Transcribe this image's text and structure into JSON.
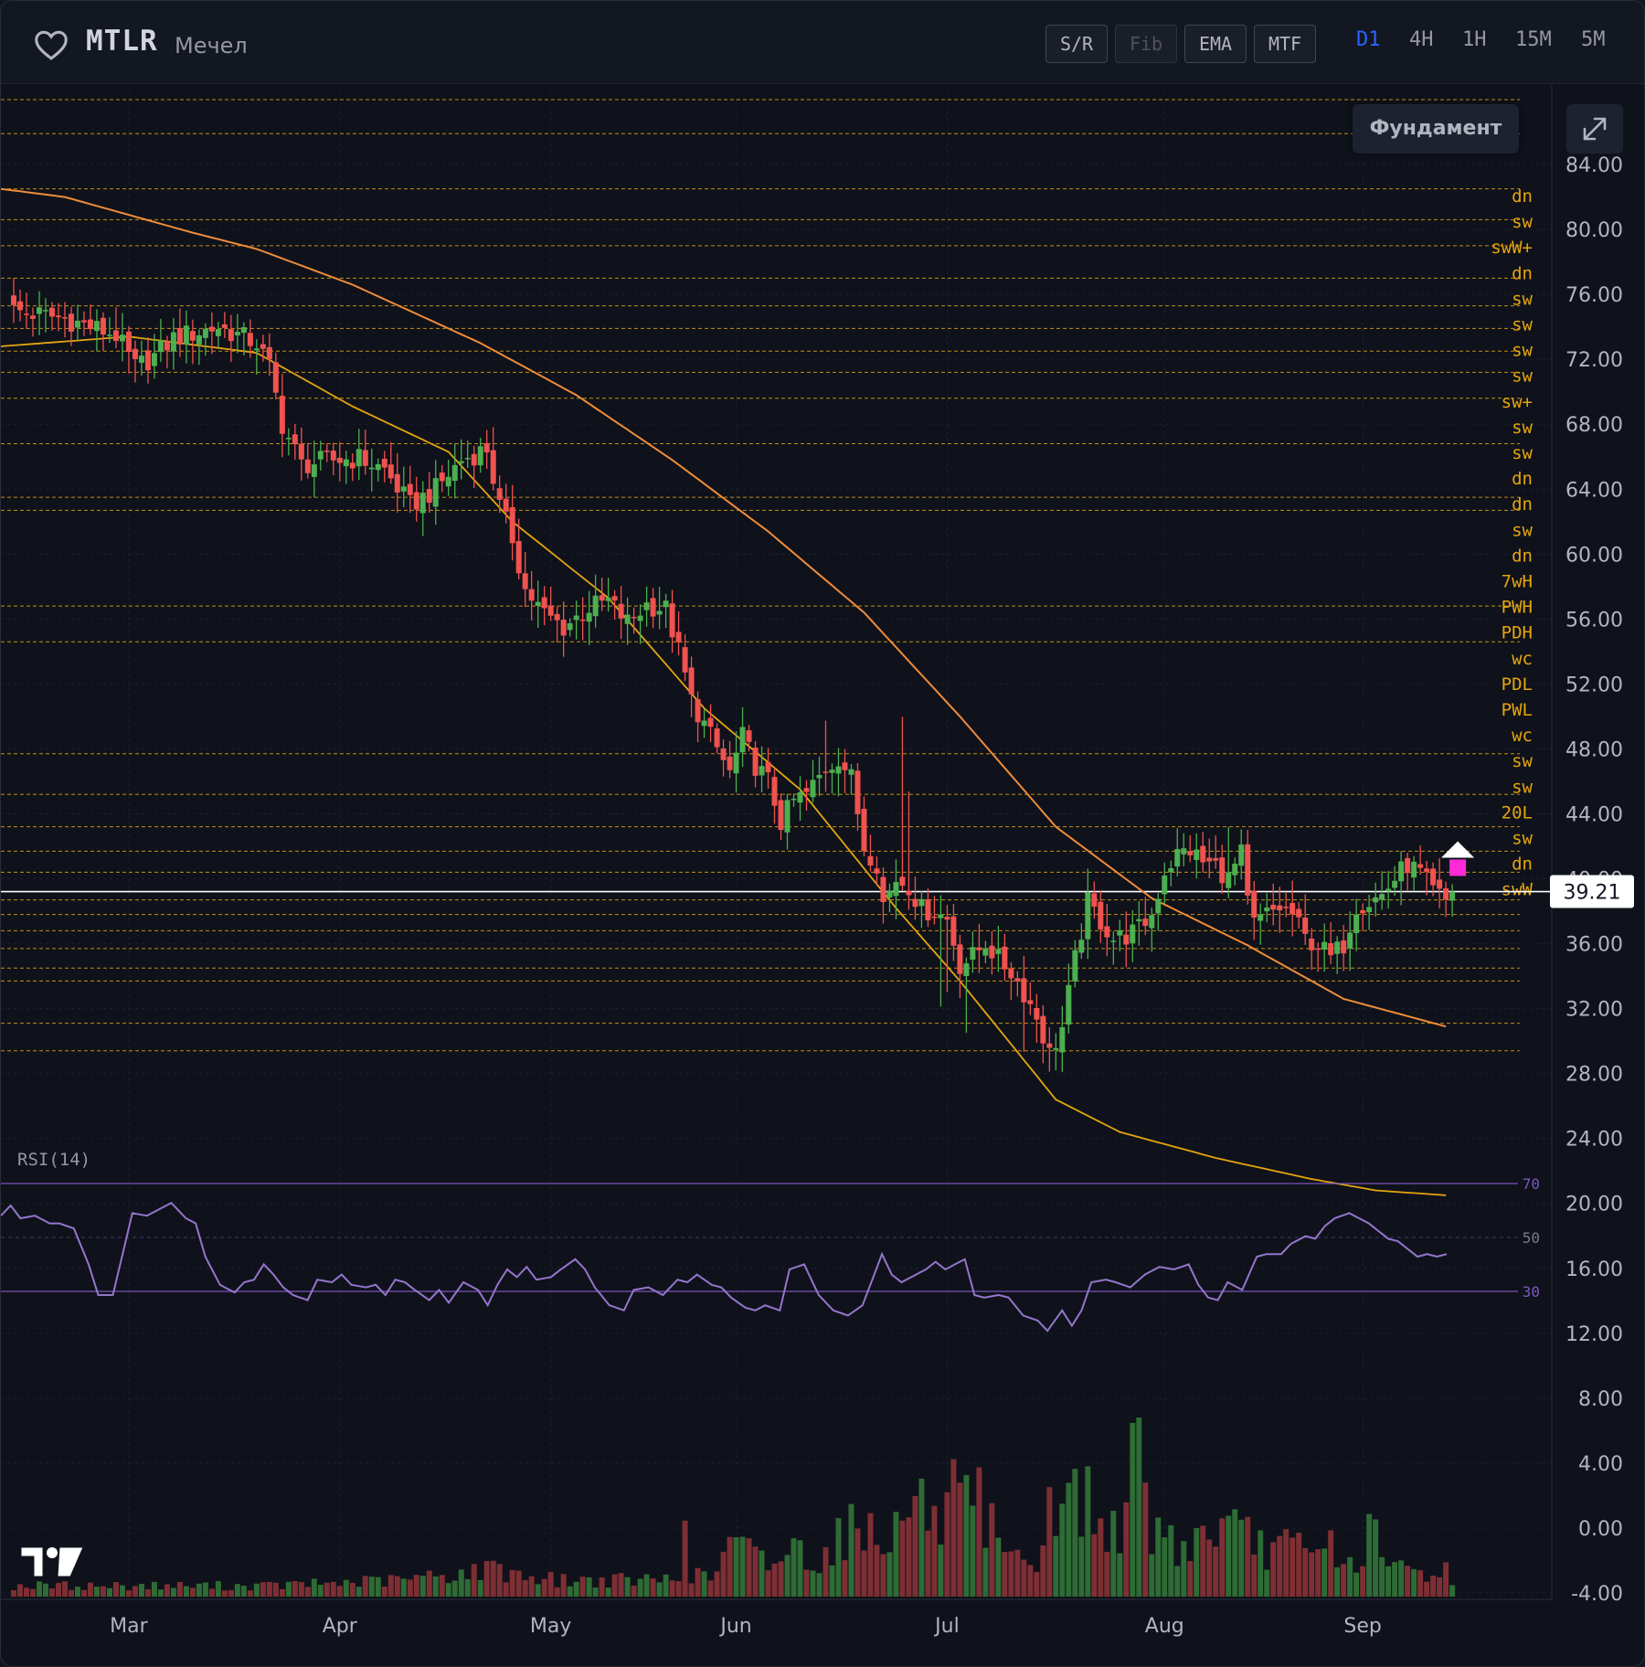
{
  "header": {
    "ticker": "MTLR",
    "company": "Мечел",
    "buttons": [
      {
        "label": "S/R",
        "active": true
      },
      {
        "label": "Fib",
        "active": false
      },
      {
        "label": "EMA",
        "active": true
      },
      {
        "label": "MTF",
        "active": true
      }
    ],
    "timeframes": [
      "D1",
      "4H",
      "1H",
      "15M",
      "5M"
    ],
    "active_timeframe": "D1"
  },
  "overlay": {
    "fundament_label": "Фундамент"
  },
  "colors": {
    "bull": "#4caf50",
    "bear": "#f0524f",
    "level": "#e5a50f",
    "ema_fast": "#e5a50f",
    "ema_slow": "#f08c3a",
    "rsi": "#9575cd",
    "accent": "#2962ff"
  },
  "chart_data": {
    "type": "candlestick",
    "ylim": [
      -4,
      88
    ],
    "y_ticks": [
      "84.00",
      "80.00",
      "76.00",
      "72.00",
      "68.00",
      "64.00",
      "60.00",
      "56.00",
      "52.00",
      "48.00",
      "44.00",
      "40.00",
      "36.00",
      "32.00",
      "28.00",
      "24.00",
      "20.00",
      "16.00",
      "12.00",
      "8.00",
      "4.00",
      "0.00",
      "-4.00"
    ],
    "x_ticks": [
      {
        "label": "Mar",
        "index": 18
      },
      {
        "label": "Apr",
        "index": 51
      },
      {
        "label": "May",
        "index": 84
      },
      {
        "label": "Jun",
        "index": 113
      },
      {
        "label": "Jul",
        "index": 146
      },
      {
        "label": "Aug",
        "index": 180
      },
      {
        "label": "Sep",
        "index": 211
      }
    ],
    "last_price": "39.21",
    "last_price_value": 39.21,
    "levels": [
      {
        "price": 88.0,
        "label": ""
      },
      {
        "price": 85.9,
        "label": ""
      },
      {
        "price": 82.5,
        "label": "dn"
      },
      {
        "price": 80.6,
        "label": "sw"
      },
      {
        "price": 79.0,
        "label": "swW+"
      },
      {
        "price": 77.0,
        "label": "dn"
      },
      {
        "price": 75.3,
        "label": "sw"
      },
      {
        "price": 73.9,
        "label": "sw"
      },
      {
        "price": 72.5,
        "label": "sw"
      },
      {
        "price": 71.2,
        "label": "sw"
      },
      {
        "price": 69.6,
        "label": "sw+"
      },
      {
        "price": 66.8,
        "label": "sw"
      },
      {
        "price": 63.5,
        "label": "sw"
      },
      {
        "price": 62.7,
        "label": "dn"
      },
      {
        "price": 56.8,
        "label": "dn"
      },
      {
        "price": 54.6,
        "label": "sw"
      },
      {
        "price": 47.7,
        "label": "dn"
      },
      {
        "price": 45.2,
        "label": "7wH"
      },
      {
        "price": 43.2,
        "label": "PWH"
      },
      {
        "price": 41.7,
        "label": "PDH"
      },
      {
        "price": 40.4,
        "label": "wc"
      },
      {
        "price": 38.7,
        "label": "PDL"
      },
      {
        "price": 37.8,
        "label": "PWL"
      },
      {
        "price": 36.8,
        "label": "wc"
      },
      {
        "price": 35.7,
        "label": "sw"
      },
      {
        "price": 34.5,
        "label": "sw"
      },
      {
        "price": 33.7,
        "label": "20L"
      },
      {
        "price": 31.1,
        "label": "sw"
      },
      {
        "price": 29.4,
        "label": "dn"
      },
      {
        "price": null,
        "label": "swW"
      }
    ],
    "ema_slow": [
      [
        0,
        82.5
      ],
      [
        10,
        82.0
      ],
      [
        20,
        80.9
      ],
      [
        30,
        79.8
      ],
      [
        40,
        78.8
      ],
      [
        55,
        76.6
      ],
      [
        75,
        73.0
      ],
      [
        90,
        69.8
      ],
      [
        105,
        65.8
      ],
      [
        120,
        61.4
      ],
      [
        135,
        56.4
      ],
      [
        150,
        50.0
      ],
      [
        165,
        43.2
      ],
      [
        180,
        38.8
      ],
      [
        195,
        35.9
      ],
      [
        210,
        32.6
      ],
      [
        226,
        30.9
      ]
    ],
    "ema_fast": [
      [
        0,
        72.8
      ],
      [
        20,
        73.4
      ],
      [
        40,
        72.4
      ],
      [
        55,
        69.1
      ],
      [
        70,
        66.3
      ],
      [
        80,
        62.0
      ],
      [
        95,
        57.3
      ],
      [
        110,
        50.5
      ],
      [
        125,
        45.5
      ],
      [
        140,
        38.2
      ],
      [
        150,
        33.7
      ],
      [
        165,
        26.4
      ],
      [
        175,
        24.4
      ],
      [
        190,
        22.8
      ],
      [
        205,
        21.5
      ],
      [
        215,
        20.8
      ],
      [
        226,
        20.5
      ]
    ],
    "rsi": {
      "label": "RSI(14)",
      "levels": [
        {
          "value": 70,
          "label": "70"
        },
        {
          "value": 50,
          "label": "50"
        },
        {
          "value": 30,
          "label": "30"
        }
      ],
      "range": [
        0,
        100
      ],
      "anchors": [
        [
          0,
          61
        ],
        [
          2,
          65
        ],
        [
          4,
          60
        ],
        [
          7,
          61
        ],
        [
          10,
          58
        ],
        [
          12,
          58
        ],
        [
          15,
          56
        ],
        [
          18,
          42
        ],
        [
          20,
          30
        ],
        [
          23,
          30
        ],
        [
          25,
          46
        ],
        [
          27,
          62
        ],
        [
          30,
          61
        ],
        [
          33,
          64
        ],
        [
          35,
          66
        ],
        [
          38,
          60
        ],
        [
          40,
          58
        ],
        [
          42,
          45
        ],
        [
          45,
          34
        ],
        [
          48,
          31
        ],
        [
          50,
          35
        ],
        [
          52,
          36
        ],
        [
          54,
          42
        ],
        [
          56,
          38
        ],
        [
          58,
          33
        ],
        [
          60,
          30
        ],
        [
          63,
          28
        ],
        [
          65,
          36
        ],
        [
          68,
          35
        ],
        [
          70,
          38
        ],
        [
          72,
          34
        ],
        [
          75,
          33
        ],
        [
          77,
          34
        ],
        [
          79,
          30
        ],
        [
          81,
          36
        ],
        [
          83,
          35
        ],
        [
          85,
          32
        ],
        [
          88,
          28
        ],
        [
          90,
          32
        ],
        [
          92,
          27
        ],
        [
          95,
          35
        ],
        [
          98,
          32
        ],
        [
          100,
          26
        ],
        [
          102,
          34
        ],
        [
          104,
          40
        ],
        [
          106,
          37
        ],
        [
          108,
          41
        ],
        [
          110,
          36
        ],
        [
          113,
          37
        ],
        [
          115,
          40
        ],
        [
          118,
          44
        ],
        [
          120,
          40
        ],
        [
          122,
          33
        ],
        [
          125,
          26
        ],
        [
          128,
          24
        ],
        [
          130,
          32
        ],
        [
          133,
          33
        ],
        [
          136,
          30
        ],
        [
          139,
          36
        ],
        [
          141,
          35
        ],
        [
          143,
          38
        ],
        [
          146,
          34
        ],
        [
          148,
          33
        ],
        [
          150,
          29
        ],
        [
          153,
          25
        ],
        [
          155,
          24
        ],
        [
          157,
          26
        ],
        [
          160,
          24
        ],
        [
          162,
          40
        ],
        [
          165,
          42
        ],
        [
          168,
          30
        ],
        [
          171,
          24
        ],
        [
          174,
          22
        ],
        [
          177,
          26
        ],
        [
          179,
          36
        ],
        [
          181,
          46
        ],
        [
          183,
          38
        ],
        [
          185,
          35
        ],
        [
          187,
          37
        ],
        [
          190,
          40
        ],
        [
          192,
          43
        ],
        [
          194,
          40
        ],
        [
          196,
          42
        ],
        [
          198,
          44
        ],
        [
          200,
          30
        ],
        [
          202,
          29
        ],
        [
          205,
          30
        ],
        [
          207,
          29
        ],
        [
          210,
          22
        ],
        [
          213,
          20
        ],
        [
          215,
          16
        ],
        [
          218,
          24
        ],
        [
          220,
          18
        ],
        [
          222,
          24
        ],
        [
          224,
          35
        ],
        [
          227,
          36
        ],
        [
          229,
          35
        ],
        [
          232,
          33
        ],
        [
          235,
          38
        ],
        [
          238,
          41
        ],
        [
          241,
          40
        ],
        [
          244,
          42
        ],
        [
          246,
          34
        ],
        [
          248,
          29
        ],
        [
          250,
          28
        ],
        [
          252,
          35
        ],
        [
          255,
          32
        ],
        [
          258,
          45
        ],
        [
          260,
          46
        ],
        [
          263,
          46
        ],
        [
          265,
          50
        ],
        [
          268,
          53
        ],
        [
          270,
          52
        ],
        [
          272,
          57
        ],
        [
          274,
          60
        ],
        [
          277,
          62
        ],
        [
          279,
          60
        ],
        [
          281,
          58
        ],
        [
          283,
          55
        ],
        [
          285,
          52
        ],
        [
          287,
          51
        ],
        [
          289,
          48
        ],
        [
          291,
          45
        ],
        [
          293,
          46
        ],
        [
          295,
          45
        ],
        [
          297,
          46
        ]
      ]
    },
    "candles": {
      "count": 226,
      "anchors": [
        [
          0,
          75.0
        ],
        [
          8,
          74.5
        ],
        [
          16,
          73.5
        ],
        [
          19,
          71.5
        ],
        [
          22,
          72.2
        ],
        [
          25,
          73.3
        ],
        [
          32,
          74.0
        ],
        [
          38,
          73.0
        ],
        [
          40,
          71.5
        ],
        [
          42,
          68.0
        ],
        [
          45,
          65.5
        ],
        [
          50,
          65.8
        ],
        [
          54,
          65.9
        ],
        [
          58,
          65.2
        ],
        [
          62,
          63.0
        ],
        [
          66,
          64.0
        ],
        [
          70,
          65.8
        ],
        [
          74,
          66.5
        ],
        [
          76,
          62.9
        ],
        [
          78,
          61.0
        ],
        [
          80,
          57.8
        ],
        [
          83,
          56.3
        ],
        [
          86,
          55.5
        ],
        [
          90,
          56.7
        ],
        [
          93,
          57.1
        ],
        [
          96,
          55.8
        ],
        [
          99,
          56.9
        ],
        [
          102,
          56.6
        ],
        [
          104,
          54.0
        ],
        [
          106,
          51.0
        ],
        [
          108,
          49.5
        ],
        [
          110,
          48.0
        ],
        [
          112,
          46.5
        ],
        [
          114,
          48.7
        ],
        [
          116,
          47.0
        ],
        [
          118,
          46.0
        ],
        [
          120,
          43.5
        ],
        [
          122,
          44.8
        ],
        [
          124,
          45.2
        ],
        [
          127,
          46.8
        ],
        [
          129,
          47.5
        ],
        [
          131,
          46.2
        ],
        [
          133,
          42.0
        ],
        [
          135,
          41.0
        ],
        [
          136,
          38.5
        ],
        [
          138,
          40.0
        ],
        [
          140,
          39.6
        ],
        [
          142,
          38.1
        ],
        [
          144,
          38.0
        ],
        [
          146,
          37.5
        ],
        [
          148,
          34.7
        ],
        [
          150,
          35.2
        ],
        [
          152,
          36.1
        ],
        [
          154,
          35.0
        ],
        [
          156,
          34.3
        ],
        [
          158,
          33.0
        ],
        [
          160,
          31.5
        ],
        [
          162,
          29.2
        ],
        [
          164,
          30.8
        ],
        [
          166,
          35.0
        ],
        [
          168,
          38.5
        ],
        [
          170,
          37.4
        ],
        [
          172,
          36.3
        ],
        [
          174,
          36.5
        ],
        [
          176,
          36.9
        ],
        [
          178,
          37.8
        ],
        [
          180,
          40.5
        ],
        [
          182,
          41.5
        ],
        [
          184,
          41.8
        ],
        [
          186,
          41.0
        ],
        [
          188,
          40.8
        ],
        [
          190,
          40.0
        ],
        [
          192,
          41.5
        ],
        [
          193,
          38.5
        ],
        [
          194,
          37.2
        ],
        [
          196,
          37.8
        ],
        [
          198,
          38.2
        ],
        [
          200,
          37.8
        ],
        [
          202,
          36.3
        ],
        [
          204,
          36.0
        ],
        [
          206,
          35.1
        ],
        [
          208,
          36.0
        ],
        [
          210,
          38.4
        ],
        [
          212,
          38.6
        ],
        [
          214,
          39.0
        ],
        [
          216,
          40.0
        ],
        [
          218,
          40.9
        ],
        [
          220,
          40.3
        ],
        [
          222,
          39.2
        ],
        [
          224,
          38.6
        ],
        [
          225,
          39.21
        ]
      ]
    },
    "volume": {
      "range": [
        0,
        33
      ],
      "anchors": [
        [
          0,
          2
        ],
        [
          40,
          2
        ],
        [
          60,
          3
        ],
        [
          75,
          5
        ],
        [
          85,
          3
        ],
        [
          100,
          3
        ],
        [
          110,
          4
        ],
        [
          112,
          10
        ],
        [
          118,
          6
        ],
        [
          122,
          9
        ],
        [
          126,
          7
        ],
        [
          130,
          12
        ],
        [
          134,
          13
        ],
        [
          138,
          12
        ],
        [
          140,
          17
        ],
        [
          142,
          18
        ],
        [
          144,
          12
        ],
        [
          148,
          20
        ],
        [
          150,
          12
        ],
        [
          152,
          21
        ],
        [
          154,
          8
        ],
        [
          156,
          6
        ],
        [
          158,
          9
        ],
        [
          160,
          5
        ],
        [
          162,
          15
        ],
        [
          164,
          14
        ],
        [
          166,
          22
        ],
        [
          168,
          14
        ],
        [
          170,
          13
        ],
        [
          172,
          16
        ],
        [
          174,
          12
        ],
        [
          175,
          31
        ],
        [
          176,
          33
        ],
        [
          177,
          17
        ],
        [
          178,
          13
        ],
        [
          180,
          12
        ],
        [
          182,
          9
        ],
        [
          186,
          11
        ],
        [
          188,
          13
        ],
        [
          190,
          12
        ],
        [
          192,
          11
        ],
        [
          196,
          9
        ],
        [
          200,
          9
        ],
        [
          204,
          7
        ],
        [
          206,
          11
        ],
        [
          208,
          6
        ],
        [
          210,
          5
        ],
        [
          212,
          14
        ],
        [
          214,
          6
        ],
        [
          218,
          5
        ],
        [
          222,
          4
        ],
        [
          224,
          5
        ],
        [
          225,
          3
        ]
      ],
      "spikes": [
        [
          76,
          6
        ],
        [
          105,
          14
        ],
        [
          112,
          11
        ],
        [
          148,
          21
        ],
        [
          152,
          9
        ],
        [
          168,
          24
        ],
        [
          175,
          32
        ],
        [
          176,
          33
        ]
      ]
    }
  }
}
